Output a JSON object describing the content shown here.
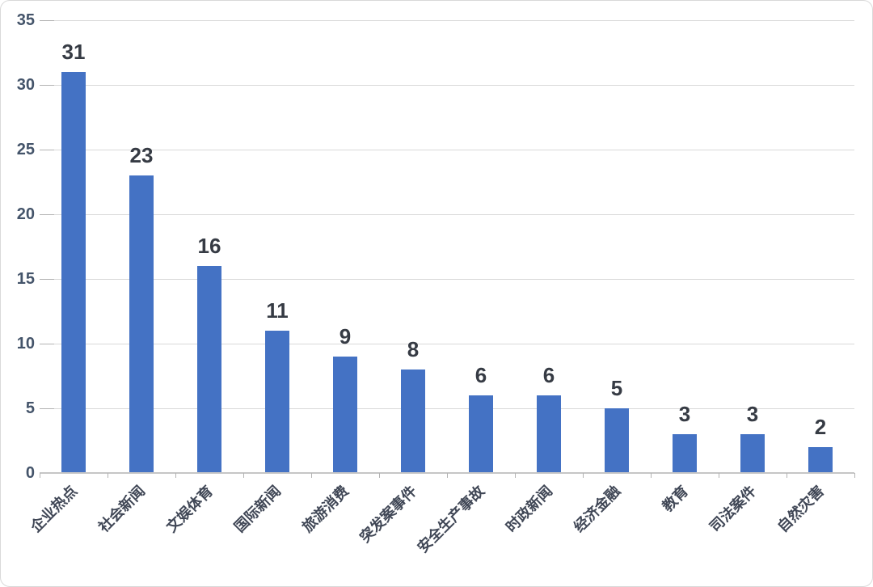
{
  "chart_data": {
    "type": "bar",
    "categories": [
      "企业热点",
      "社会新闻",
      "文娱体育",
      "国际新闻",
      "旅游消费",
      "突发案事件",
      "安全生产事故",
      "时政新闻",
      "经济金融",
      "教育",
      "司法案件",
      "自然灾害"
    ],
    "values": [
      31,
      23,
      16,
      11,
      9,
      8,
      6,
      6,
      5,
      3,
      3,
      2
    ],
    "title": "",
    "xlabel": "",
    "ylabel": "",
    "ylim": [
      0,
      35
    ],
    "yticks": [
      0,
      5,
      10,
      15,
      20,
      25,
      30,
      35
    ],
    "grid": true,
    "legend": "none",
    "bar_color": "#4472c4",
    "gridline_color": "#d9d9d9",
    "axis_line_color": "#c6c6c6",
    "value_label_color": "#363b44",
    "ytick_label_color": "#44546a",
    "category_label_color": "#404756"
  }
}
